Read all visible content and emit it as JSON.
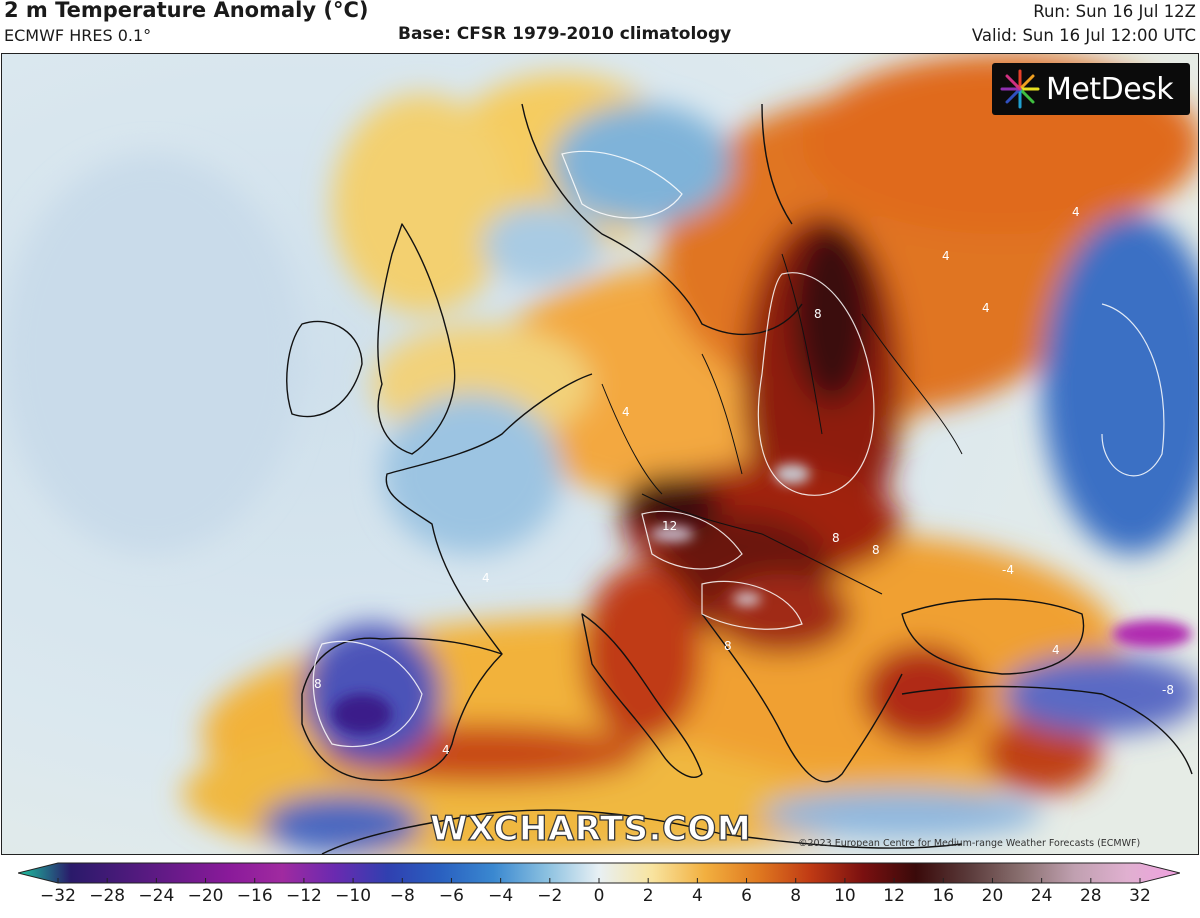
{
  "header": {
    "title": "2 m Temperature Anomaly (°C)",
    "model": "ECMWF HRES 0.1°",
    "base": "Base: CFSR 1979-2010 climatology",
    "run": "Run: Sun 16 Jul 12Z",
    "valid": "Valid: Sun 16 Jul 12:00 UTC"
  },
  "branding": {
    "logo_text": "MetDesk",
    "watermark": "WXCHARTS.COM",
    "copyright": "©2023 European Centre for Medium-range Weather Forecasts (ECMWF)"
  },
  "map": {
    "contour_labels": [
      "4",
      "4",
      "4",
      "8",
      "8",
      "12",
      "8",
      "8",
      "4",
      "4",
      "-4",
      "8",
      "-8",
      "4",
      "4"
    ],
    "colors": {
      "cold_deep": "#2b1f8c",
      "cold": "#3a6fc4",
      "cool": "#9ec7e3",
      "neutral": "#dfe9ee",
      "mild": "#f4d36a",
      "warm": "#f0a030",
      "hot": "#d65418",
      "very_hot": "#8e1a10",
      "extreme": "#3a0a0a",
      "land_border": "#111111"
    }
  },
  "colorbar": {
    "ticks": [
      "−32",
      "−28",
      "−24",
      "−20",
      "−16",
      "−12",
      "−10",
      "−8",
      "−6",
      "−4",
      "−2",
      "0",
      "2",
      "4",
      "6",
      "8",
      "10",
      "12",
      "16",
      "20",
      "24",
      "28",
      "32"
    ],
    "colors": [
      "#1ec4a0",
      "#2a1a6a",
      "#4a1a7a",
      "#6a1a8a",
      "#8a1a9a",
      "#a02aa0",
      "#6a2ab0",
      "#3040b0",
      "#2a60c0",
      "#3a88d0",
      "#8ac0e0",
      "#e8f0f4",
      "#f8e4a0",
      "#f2b040",
      "#e07a20",
      "#c03a14",
      "#7a1010",
      "#3a0a0a",
      "#5a3a3a",
      "#8a7070",
      "#c0a0b0",
      "#e0b0d0",
      "#f0a0e0"
    ]
  }
}
